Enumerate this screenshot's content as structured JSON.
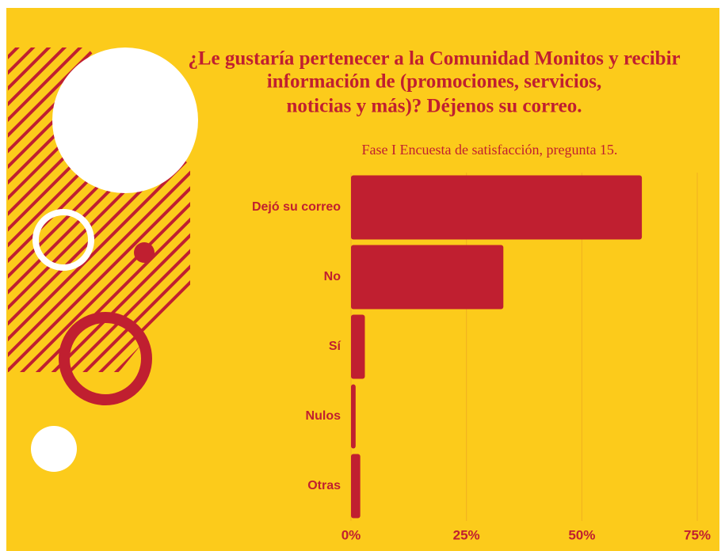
{
  "chart_data": {
    "type": "barh",
    "title": [
      "¿Le gustaría pertenecer a la Comunidad Monitos y recibir",
      "información de (promociones, servicios,",
      "noticias y más)? Déjenos su correo."
    ],
    "subtitle": "Fase I Encuesta de satisfacción, pregunta 15.",
    "categories": [
      "Dejó su correo",
      "No",
      "Sí",
      "Nulos",
      "Otras"
    ],
    "values": [
      63,
      33,
      3,
      1,
      2
    ],
    "color": "#c01f30",
    "xlim": [
      0,
      75
    ],
    "xticks": [
      {
        "value": 0,
        "label": "0%"
      },
      {
        "value": 25,
        "label": "25%"
      },
      {
        "value": 50,
        "label": "50%"
      },
      {
        "value": 75,
        "label": "75%"
      }
    ],
    "grid": true
  }
}
